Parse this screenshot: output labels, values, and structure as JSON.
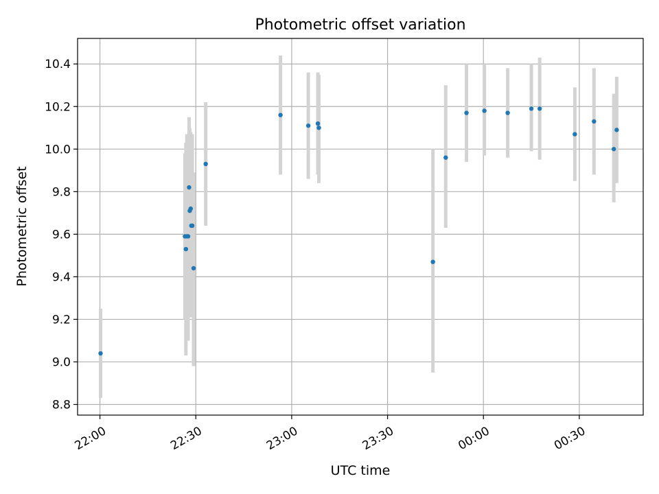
{
  "chart_data": {
    "type": "scatter",
    "title": "Photometric offset variation",
    "xlabel": "UTC time",
    "ylabel": "Photometric offset",
    "xlim": [
      "21:53",
      "00:50"
    ],
    "ylim": [
      8.75,
      10.52
    ],
    "x_ticks": [
      "22:00",
      "22:30",
      "23:00",
      "23:30",
      "00:00",
      "00:30"
    ],
    "y_ticks": [
      "8.8",
      "9.0",
      "9.2",
      "9.4",
      "9.6",
      "9.8",
      "10.0",
      "10.2",
      "10.4"
    ],
    "grid": true,
    "legend": "none",
    "errorbar_color": "#d3d3d3",
    "point_color": "#1f77b4",
    "points": [
      {
        "t": "22:00.2",
        "y": 9.04,
        "ylo": 8.83,
        "yhi": 9.25
      },
      {
        "t": "22:26.6",
        "y": 9.59,
        "ylo": 9.2,
        "yhi": 9.98
      },
      {
        "t": "22:26.9",
        "y": 9.53,
        "ylo": 9.03,
        "yhi": 10.03
      },
      {
        "t": "22:27.2",
        "y": 9.59,
        "ylo": 9.17,
        "yhi": 10.07
      },
      {
        "t": "22:27.6",
        "y": 9.59,
        "ylo": 9.1,
        "yhi": 10.07
      },
      {
        "t": "22:27.9",
        "y": 9.82,
        "ylo": 9.48,
        "yhi": 10.15
      },
      {
        "t": "22:28.1",
        "y": 9.71,
        "ylo": 9.33,
        "yhi": 10.1
      },
      {
        "t": "22:28.4",
        "y": 9.72,
        "ylo": 9.36,
        "yhi": 10.08
      },
      {
        "t": "22:28.6",
        "y": 9.64,
        "ylo": 9.21,
        "yhi": 10.07
      },
      {
        "t": "22:28.9",
        "y": 9.64,
        "ylo": 9.22,
        "yhi": 10.07
      },
      {
        "t": "22:29.3",
        "y": 9.44,
        "ylo": 8.98,
        "yhi": 9.89
      },
      {
        "t": "22:33.1",
        "y": 9.93,
        "ylo": 9.64,
        "yhi": 10.22
      },
      {
        "t": "22:56.5",
        "y": 10.16,
        "ylo": 9.88,
        "yhi": 10.44
      },
      {
        "t": "23:05.2",
        "y": 10.11,
        "ylo": 9.86,
        "yhi": 10.36
      },
      {
        "t": "23:08.2",
        "y": 10.12,
        "ylo": 9.88,
        "yhi": 10.36
      },
      {
        "t": "23:08.5",
        "y": 10.1,
        "ylo": 9.84,
        "yhi": 10.35
      },
      {
        "t": "23:44.2",
        "y": 9.47,
        "ylo": 8.95,
        "yhi": 10.0
      },
      {
        "t": "23:48.2",
        "y": 9.96,
        "ylo": 9.63,
        "yhi": 10.3
      },
      {
        "t": "23:54.7",
        "y": 10.17,
        "ylo": 9.94,
        "yhi": 10.4
      },
      {
        "t": "00:00.3",
        "y": 10.18,
        "ylo": 9.97,
        "yhi": 10.4
      },
      {
        "t": "00:07.6",
        "y": 10.17,
        "ylo": 9.96,
        "yhi": 10.38
      },
      {
        "t": "00:15.0",
        "y": 10.19,
        "ylo": 9.99,
        "yhi": 10.4
      },
      {
        "t": "00:17.6",
        "y": 10.19,
        "ylo": 9.95,
        "yhi": 10.43
      },
      {
        "t": "00:28.6",
        "y": 10.07,
        "ylo": 9.85,
        "yhi": 10.29
      },
      {
        "t": "00:34.6",
        "y": 10.13,
        "ylo": 9.88,
        "yhi": 10.38
      },
      {
        "t": "00:40.8",
        "y": 10.0,
        "ylo": 9.75,
        "yhi": 10.26
      },
      {
        "t": "00:41.7",
        "y": 10.09,
        "ylo": 9.84,
        "yhi": 10.34
      }
    ]
  }
}
